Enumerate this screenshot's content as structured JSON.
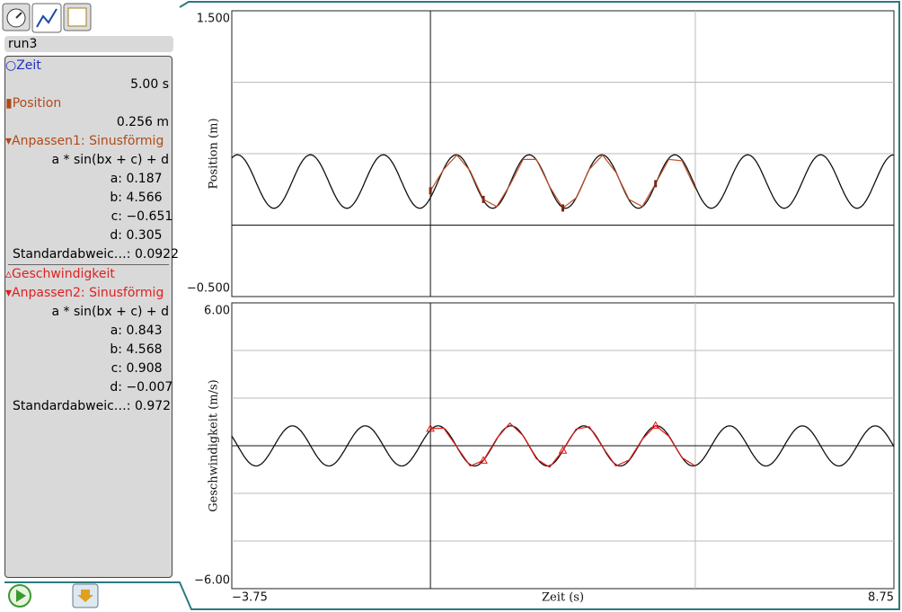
{
  "run": "run3",
  "panel": {
    "time": {
      "name": "Zeit",
      "value": "5.00 s"
    },
    "position": {
      "name": "Position",
      "value": "0.256 m"
    },
    "velocity": {
      "name": "Geschwindigkeit"
    },
    "fits": [
      {
        "title": "Anpassen1: Sinusförmig",
        "formula": "a * sin(bx + c) + d",
        "params": [
          {
            "name": "a:",
            "value": 0.187
          },
          {
            "name": "b:",
            "value": 4.566
          },
          {
            "name": "c:",
            "value": -0.651,
            "label": "−0.651"
          },
          {
            "name": "d:",
            "value": 0.305
          }
        ],
        "stderr_label": "Standardabweic…:",
        "stderr": 0.0922
      },
      {
        "title": "Anpassen2: Sinusförmig",
        "formula": "a * sin(bx + c) + d",
        "params": [
          {
            "name": "a:",
            "value": 0.843
          },
          {
            "name": "b:",
            "value": 4.568
          },
          {
            "name": "c:",
            "value": 0.908
          },
          {
            "name": "d:",
            "value": -0.007,
            "label": "−0.007"
          }
        ],
        "stderr_label": "Standardabweic…:",
        "stderr": 0.972
      }
    ]
  },
  "x_axis": {
    "label": "Zeit (s)",
    "xlim": [
      -3.75,
      8.75
    ],
    "xticks": [
      {
        "value": -3.75,
        "label": "−3.75"
      },
      {
        "value": 8.75,
        "label": "8.75"
      }
    ],
    "xgrid": [
      5
    ]
  },
  "x": [
    0,
    0.25,
    0.5,
    0.75,
    1,
    1.25,
    1.5,
    1.75,
    2,
    2.25,
    2.5,
    2.75,
    3,
    3.25,
    3.5,
    3.75,
    4,
    4.25,
    4.5,
    4.75,
    5
  ],
  "graphs": [
    {
      "y_label": "Position (m)",
      "ylim": [
        -0.5,
        1.5
      ],
      "yticks": [
        {
          "value": 1.5,
          "label": "1.500"
        },
        {
          "value": -0.5,
          "label": "−0.500"
        }
      ],
      "ygrid": [
        0.5,
        1
      ],
      "color": "#c0502a",
      "marker": "bar",
      "values": [
        0.24,
        0.39,
        0.49,
        0.38,
        0.18,
        0.13,
        0.28,
        0.46,
        0.46,
        0.27,
        0.12,
        0.19,
        0.39,
        0.49,
        0.37,
        0.18,
        0.13,
        0.29,
        0.46,
        0.45,
        0.256
      ]
    },
    {
      "y_label": "Geschwindigkeit (m/s)",
      "ylim": [
        -6,
        6
      ],
      "yticks": [
        {
          "value": 6,
          "label": "6.00"
        },
        {
          "value": -6,
          "label": "−6.00"
        }
      ],
      "ygrid": [
        -4,
        -2,
        2,
        4
      ],
      "color": "#e01818",
      "marker": "triangle",
      "values": [
        0.72,
        0.74,
        -0.05,
        -0.85,
        -0.62,
        0.3,
        0.95,
        0.42,
        -0.55,
        -0.9,
        -0.2,
        0.7,
        0.8,
        -0.05,
        -0.85,
        -0.6,
        0.27,
        0.85,
        0.4,
        -0.5,
        -0.85
      ]
    }
  ]
}
